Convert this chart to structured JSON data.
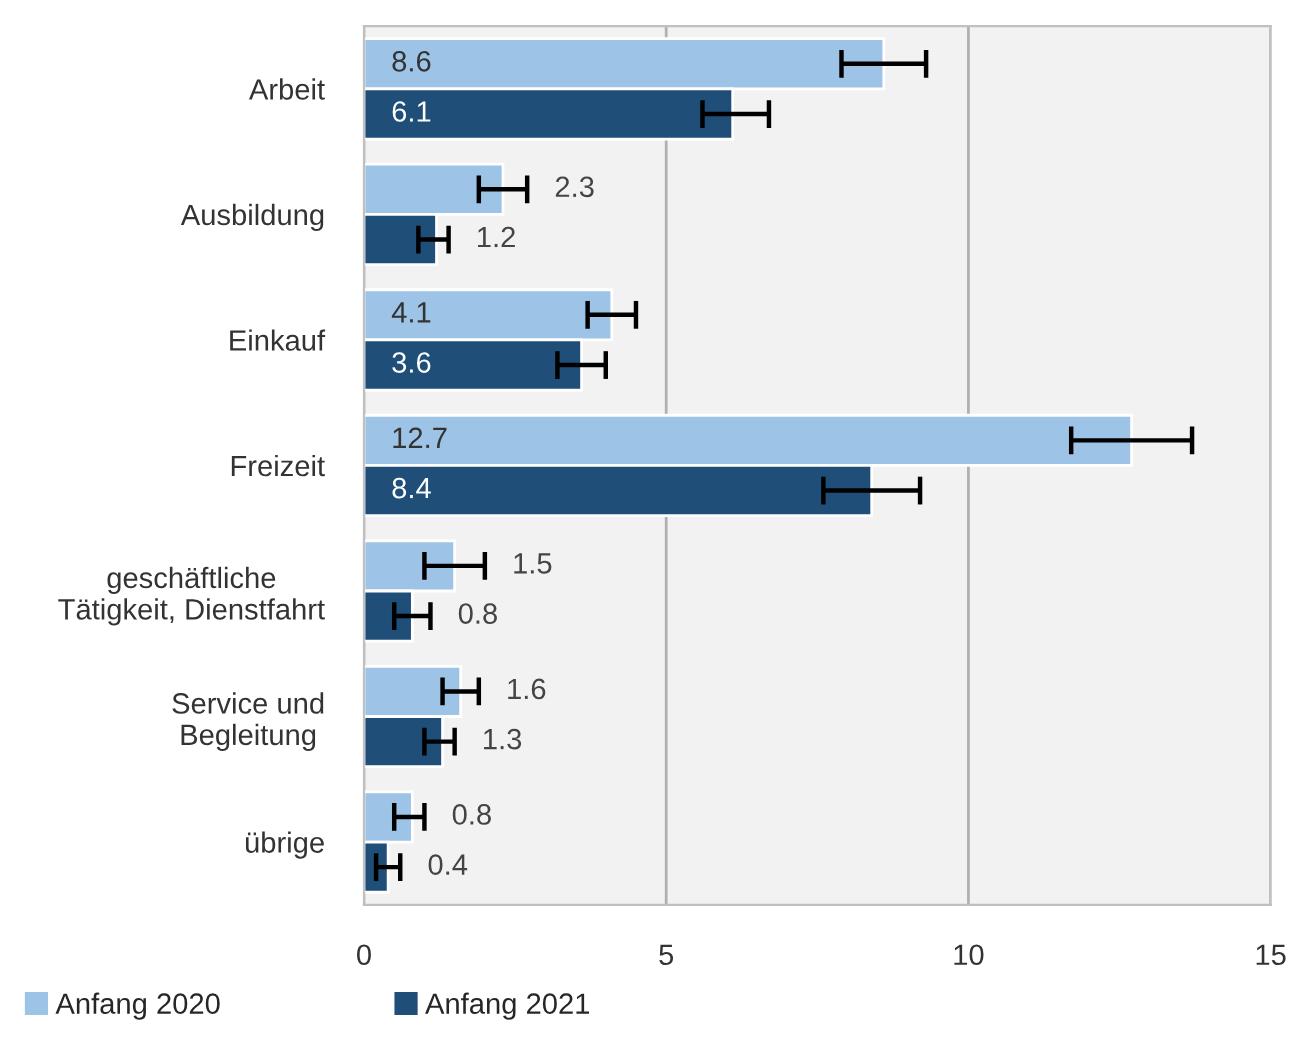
{
  "chart_data": {
    "type": "bar",
    "orientation": "horizontal",
    "categories": [
      "Arbeit",
      "Ausbildung",
      "Einkauf",
      "Freizeit",
      "geschäftliche\nTätigkeit, Dienstfahrt",
      "Service und\nBegleitung",
      "übrige"
    ],
    "series": [
      {
        "name": "Anfang 2020",
        "color": "#9dc3e6",
        "values": [
          8.6,
          2.3,
          4.1,
          12.7,
          1.5,
          1.6,
          0.8
        ],
        "errors": [
          [
            7.9,
            9.3
          ],
          [
            1.9,
            2.7
          ],
          [
            3.7,
            4.5
          ],
          [
            11.7,
            13.7
          ],
          [
            1.0,
            2.0
          ],
          [
            1.3,
            1.9
          ],
          [
            0.5,
            1.0
          ]
        ]
      },
      {
        "name": "Anfang 2021",
        "color": "#1f4e79",
        "values": [
          6.1,
          1.2,
          3.6,
          8.4,
          0.8,
          1.3,
          0.4
        ],
        "errors": [
          [
            5.6,
            6.7
          ],
          [
            0.9,
            1.4
          ],
          [
            3.2,
            4.0
          ],
          [
            7.6,
            9.2
          ],
          [
            0.5,
            1.1
          ],
          [
            1.0,
            1.5
          ],
          [
            0.2,
            0.6
          ]
        ]
      }
    ],
    "xlim": [
      0,
      15
    ],
    "xticks": [
      0,
      5,
      10,
      15
    ],
    "grid": "x",
    "legend": "bottom left",
    "data_labels": true
  }
}
